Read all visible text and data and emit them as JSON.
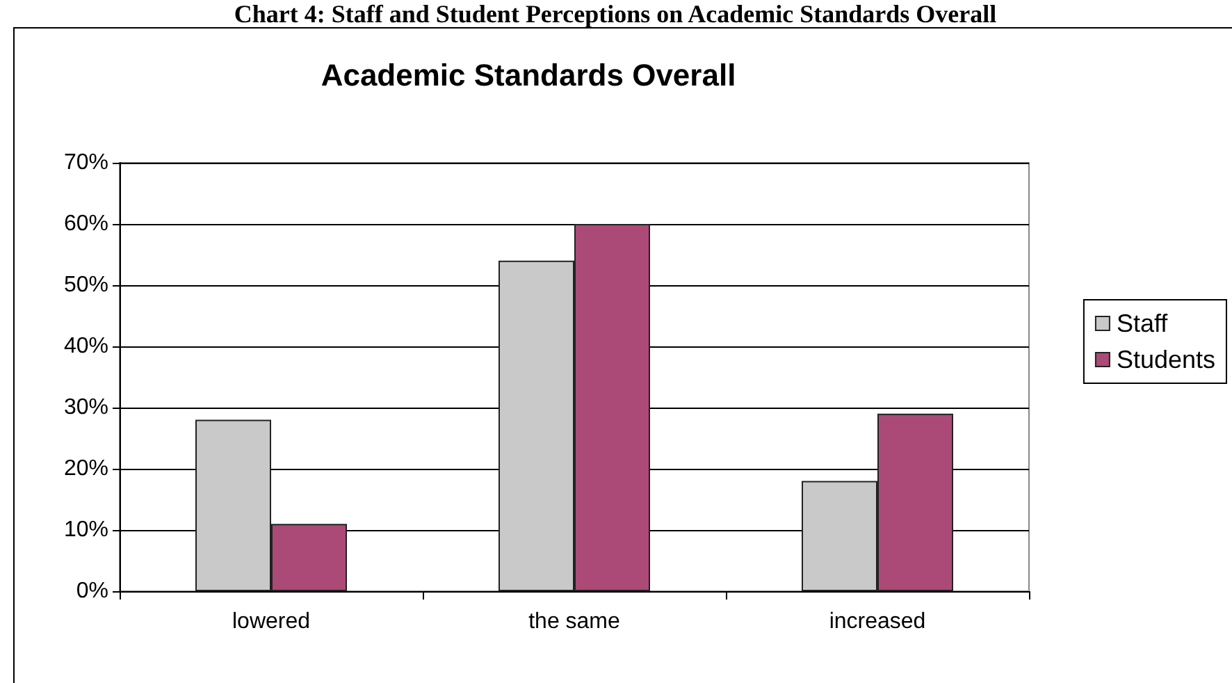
{
  "chart_data": {
    "type": "bar",
    "title": "Academic Standards Overall",
    "annotations": [
      "Chart 4: Staff and Student Perceptions on Academic Standards Overall"
    ],
    "categories": [
      "lowered",
      "the same",
      "increased"
    ],
    "series": [
      {
        "name": "Staff",
        "color": "#c9c9c9",
        "values": [
          28,
          54,
          18
        ]
      },
      {
        "name": "Students",
        "color": "#ab4a76",
        "values": [
          11,
          60,
          29
        ]
      }
    ],
    "ylim": [
      0,
      70
    ],
    "yticks": [
      {
        "value": 0,
        "label": "0%"
      },
      {
        "value": 10,
        "label": "10%"
      },
      {
        "value": 20,
        "label": "20%"
      },
      {
        "value": 30,
        "label": "30%"
      },
      {
        "value": 40,
        "label": "40%"
      },
      {
        "value": 50,
        "label": "50%"
      },
      {
        "value": 60,
        "label": "60%"
      },
      {
        "value": 70,
        "label": "70%"
      }
    ],
    "grid": "y",
    "legend": "right"
  }
}
